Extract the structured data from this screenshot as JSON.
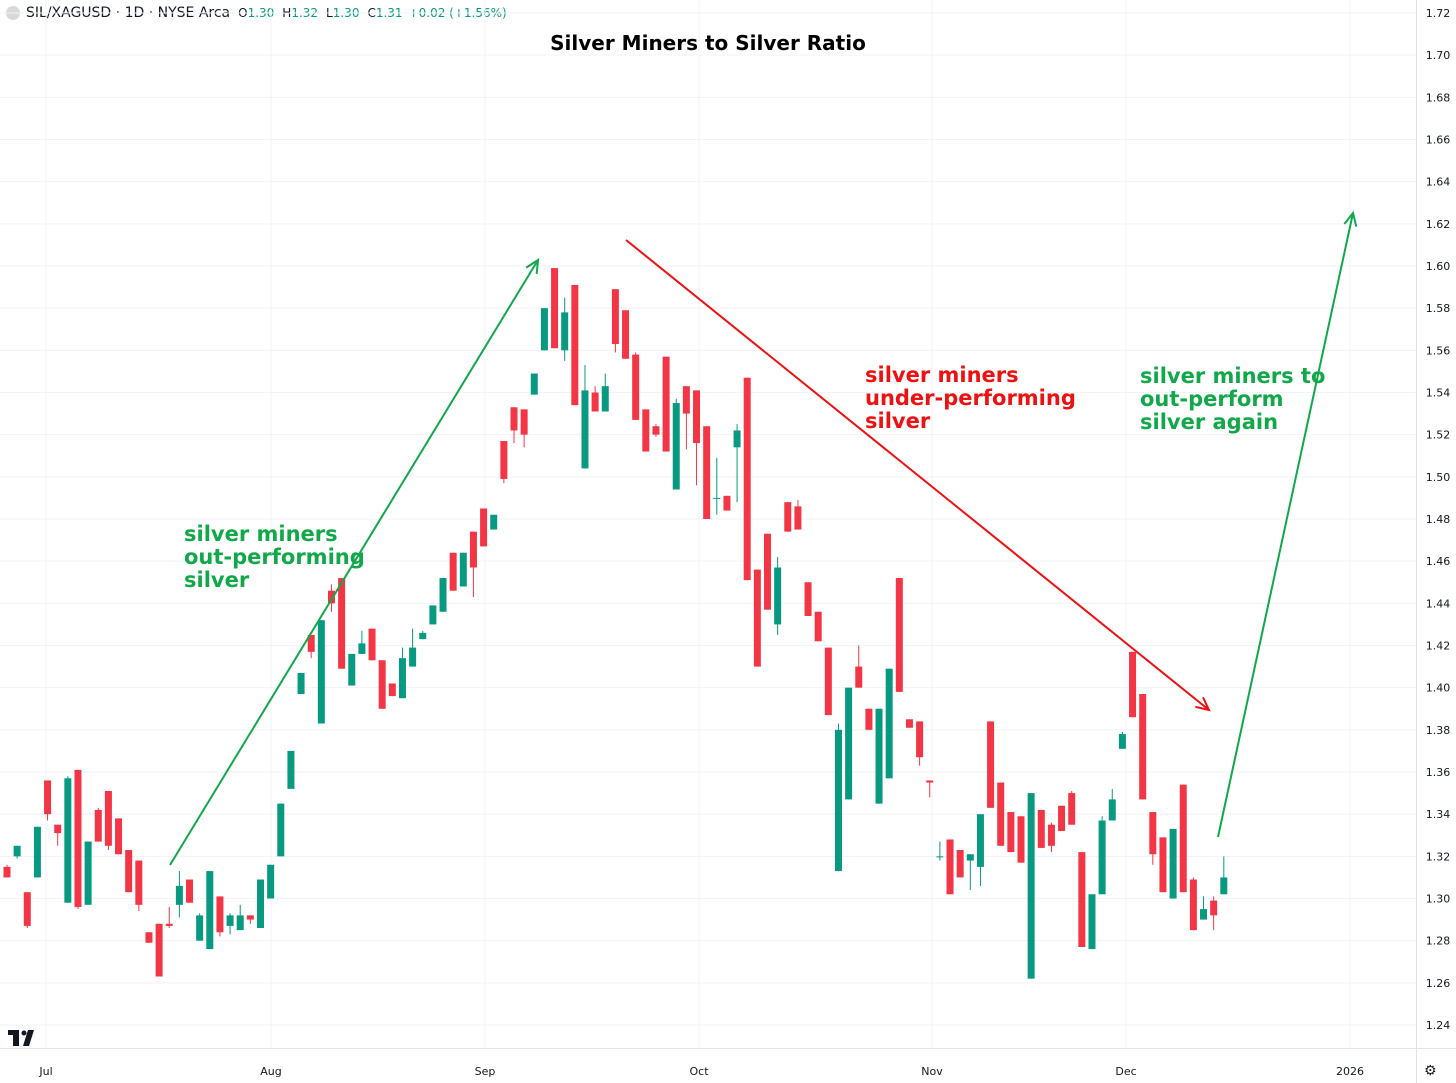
{
  "header": {
    "symbol": "SIL/XAGUSD · 1D · NYSE Arca",
    "o_label": "O",
    "o_value": "1.30",
    "h_label": "H",
    "h_value": "1.32",
    "l_label": "L",
    "l_value": "1.30",
    "c_label": "C",
    "c_value": "1.31",
    "change": "+0.02 (+1.56%)"
  },
  "colors": {
    "up": "#089981",
    "down": "#f23645",
    "green_annotation": "#11a84a",
    "red_annotation": "#ee1111",
    "grid": "#f0f3fa"
  },
  "annotations": [
    {
      "lines": [
        "silver miners",
        "out-performing",
        "silver"
      ],
      "color": "green"
    },
    {
      "lines": [
        "silver miners",
        "under-performing",
        "silver"
      ],
      "color": "red"
    },
    {
      "lines": [
        "silver miners to",
        "out-perform",
        "silver again"
      ],
      "color": "green"
    }
  ],
  "chart_data": {
    "type": "candlestick",
    "title": "Silver Miners to Silver Ratio",
    "ylim": [
      1.23,
      1.725
    ],
    "y_ticks": [
      "1.72",
      "1.70",
      "1.68",
      "1.66",
      "1.64",
      "1.62",
      "1.60",
      "1.58",
      "1.56",
      "1.54",
      "1.52",
      "1.50",
      "1.48",
      "1.46",
      "1.44",
      "1.42",
      "1.40",
      "1.38",
      "1.36",
      "1.34",
      "1.32",
      "1.30",
      "1.28",
      "1.26",
      "1.24"
    ],
    "x_ticks": [
      "Jul",
      "Aug",
      "Sep",
      "Oct",
      "Nov",
      "Dec",
      "2026"
    ],
    "scale_position": "right",
    "grid": true,
    "candles": [
      [
        1.315,
        1.31,
        1.316,
        1.31
      ],
      [
        1.32,
        1.325,
        1.325,
        1.319
      ],
      [
        1.303,
        1.287,
        1.303,
        1.286
      ],
      [
        1.31,
        1.334,
        1.334,
        1.31
      ],
      [
        1.356,
        1.34,
        1.356,
        1.337
      ],
      [
        1.335,
        1.331,
        1.335,
        1.325
      ],
      [
        1.298,
        1.357,
        1.358,
        1.298
      ],
      [
        1.361,
        1.296,
        1.361,
        1.295
      ],
      [
        1.297,
        1.327,
        1.327,
        1.297
      ],
      [
        1.342,
        1.327,
        1.343,
        1.327
      ],
      [
        1.351,
        1.325,
        1.351,
        1.323
      ],
      [
        1.338,
        1.321,
        1.338,
        1.321
      ],
      [
        1.323,
        1.303,
        1.323,
        1.303
      ],
      [
        1.318,
        1.297,
        1.318,
        1.294
      ],
      [
        1.284,
        1.279,
        1.284,
        1.279
      ],
      [
        1.288,
        1.263,
        1.288,
        1.263
      ],
      [
        1.288,
        1.287,
        1.296,
        1.286
      ],
      [
        1.297,
        1.306,
        1.313,
        1.291
      ],
      [
        1.309,
        1.298,
        1.309,
        1.298
      ],
      [
        1.28,
        1.292,
        1.293,
        1.28
      ],
      [
        1.276,
        1.313,
        1.313,
        1.276
      ],
      [
        1.301,
        1.284,
        1.301,
        1.282
      ],
      [
        1.287,
        1.292,
        1.293,
        1.283
      ],
      [
        1.285,
        1.292,
        1.297,
        1.285
      ],
      [
        1.292,
        1.29,
        1.292,
        1.288
      ],
      [
        1.286,
        1.309,
        1.309,
        1.286
      ],
      [
        1.3,
        1.316,
        1.316,
        1.3
      ],
      [
        1.32,
        1.345,
        1.345,
        1.32
      ],
      [
        1.352,
        1.37,
        1.37,
        1.352
      ],
      [
        1.397,
        1.407,
        1.407,
        1.397
      ],
      [
        1.425,
        1.417,
        1.425,
        1.414
      ],
      [
        1.383,
        1.432,
        1.432,
        1.383
      ],
      [
        1.446,
        1.44,
        1.449,
        1.436
      ],
      [
        1.452,
        1.409,
        1.452,
        1.409
      ],
      [
        1.401,
        1.416,
        1.416,
        1.401
      ],
      [
        1.416,
        1.421,
        1.427,
        1.416
      ],
      [
        1.428,
        1.413,
        1.428,
        1.413
      ],
      [
        1.413,
        1.39,
        1.413,
        1.39
      ],
      [
        1.402,
        1.396,
        1.402,
        1.396
      ],
      [
        1.395,
        1.414,
        1.419,
        1.395
      ],
      [
        1.41,
        1.419,
        1.428,
        1.41
      ],
      [
        1.423,
        1.426,
        1.427,
        1.423
      ],
      [
        1.43,
        1.439,
        1.439,
        1.43
      ],
      [
        1.436,
        1.452,
        1.452,
        1.436
      ],
      [
        1.464,
        1.446,
        1.464,
        1.446
      ],
      [
        1.448,
        1.464,
        1.464,
        1.448
      ],
      [
        1.474,
        1.457,
        1.474,
        1.443
      ],
      [
        1.485,
        1.467,
        1.485,
        1.467
      ],
      [
        1.475,
        1.482,
        1.482,
        1.475
      ],
      [
        1.517,
        1.499,
        1.517,
        1.497
      ],
      [
        1.533,
        1.522,
        1.533,
        1.516
      ],
      [
        1.532,
        1.52,
        1.532,
        1.514
      ],
      [
        1.539,
        1.549,
        1.549,
        1.539
      ],
      [
        1.56,
        1.58,
        1.58,
        1.56
      ],
      [
        1.599,
        1.561,
        1.599,
        1.561
      ],
      [
        1.56,
        1.578,
        1.585,
        1.555
      ],
      [
        1.591,
        1.534,
        1.591,
        1.534
      ],
      [
        1.504,
        1.541,
        1.553,
        1.504
      ],
      [
        1.54,
        1.531,
        1.543,
        1.531
      ],
      [
        1.531,
        1.543,
        1.549,
        1.531
      ],
      [
        1.589,
        1.563,
        1.589,
        1.559
      ],
      [
        1.579,
        1.556,
        1.579,
        1.556
      ],
      [
        1.558,
        1.527,
        1.559,
        1.527
      ],
      [
        1.532,
        1.512,
        1.532,
        1.512
      ],
      [
        1.524,
        1.52,
        1.525,
        1.519
      ],
      [
        1.557,
        1.512,
        1.557,
        1.512
      ],
      [
        1.494,
        1.535,
        1.537,
        1.494
      ],
      [
        1.543,
        1.53,
        1.543,
        1.513
      ],
      [
        1.541,
        1.516,
        1.541,
        1.496
      ],
      [
        1.524,
        1.48,
        1.524,
        1.48
      ],
      [
        1.49,
        1.49,
        1.509,
        1.482
      ],
      [
        1.491,
        1.484,
        1.491,
        1.484
      ],
      [
        1.514,
        1.522,
        1.525,
        1.488
      ],
      [
        1.547,
        1.451,
        1.547,
        1.451
      ],
      [
        1.456,
        1.41,
        1.456,
        1.41
      ],
      [
        1.473,
        1.437,
        1.473,
        1.437
      ],
      [
        1.43,
        1.457,
        1.462,
        1.425
      ],
      [
        1.488,
        1.474,
        1.488,
        1.474
      ],
      [
        1.486,
        1.475,
        1.489,
        1.475
      ],
      [
        1.45,
        1.434,
        1.45,
        1.434
      ],
      [
        1.436,
        1.422,
        1.436,
        1.422
      ],
      [
        1.419,
        1.387,
        1.419,
        1.387
      ],
      [
        1.313,
        1.38,
        1.383,
        1.313
      ],
      [
        1.347,
        1.4,
        1.4,
        1.347
      ],
      [
        1.41,
        1.4,
        1.42,
        1.4
      ],
      [
        1.39,
        1.38,
        1.39,
        1.38
      ],
      [
        1.345,
        1.39,
        1.39,
        1.345
      ],
      [
        1.357,
        1.409,
        1.409,
        1.357
      ],
      [
        1.452,
        1.398,
        1.452,
        1.398
      ],
      [
        1.385,
        1.381,
        1.385,
        1.381
      ],
      [
        1.384,
        1.367,
        1.384,
        1.363
      ],
      [
        1.356,
        1.355,
        1.356,
        1.348
      ],
      [
        1.32,
        1.32,
        1.327,
        1.318
      ],
      [
        1.328,
        1.302,
        1.328,
        1.302
      ],
      [
        1.323,
        1.31,
        1.323,
        1.31
      ],
      [
        1.318,
        1.321,
        1.321,
        1.304
      ],
      [
        1.315,
        1.34,
        1.34,
        1.306
      ],
      [
        1.384,
        1.343,
        1.384,
        1.343
      ],
      [
        1.355,
        1.325,
        1.355,
        1.325
      ],
      [
        1.341,
        1.322,
        1.341,
        1.322
      ],
      [
        1.339,
        1.317,
        1.339,
        1.317
      ],
      [
        1.262,
        1.35,
        1.35,
        1.262
      ],
      [
        1.342,
        1.324,
        1.342,
        1.324
      ],
      [
        1.335,
        1.325,
        1.336,
        1.322
      ],
      [
        1.344,
        1.332,
        1.344,
        1.332
      ],
      [
        1.35,
        1.335,
        1.351,
        1.335
      ],
      [
        1.322,
        1.277,
        1.322,
        1.277
      ],
      [
        1.276,
        1.302,
        1.302,
        1.276
      ],
      [
        1.302,
        1.337,
        1.339,
        1.302
      ],
      [
        1.337,
        1.347,
        1.352,
        1.337
      ],
      [
        1.371,
        1.378,
        1.379,
        1.371
      ],
      [
        1.417,
        1.386,
        1.417,
        1.386
      ],
      [
        1.397,
        1.347,
        1.397,
        1.347
      ],
      [
        1.341,
        1.321,
        1.341,
        1.316
      ],
      [
        1.329,
        1.303,
        1.329,
        1.303
      ],
      [
        1.3,
        1.333,
        1.333,
        1.3
      ],
      [
        1.354,
        1.303,
        1.354,
        1.303
      ],
      [
        1.309,
        1.285,
        1.31,
        1.285
      ],
      [
        1.29,
        1.295,
        1.301,
        1.29
      ],
      [
        1.299,
        1.292,
        1.301,
        1.285
      ],
      [
        1.302,
        1.31,
        1.32,
        1.302
      ]
    ]
  }
}
